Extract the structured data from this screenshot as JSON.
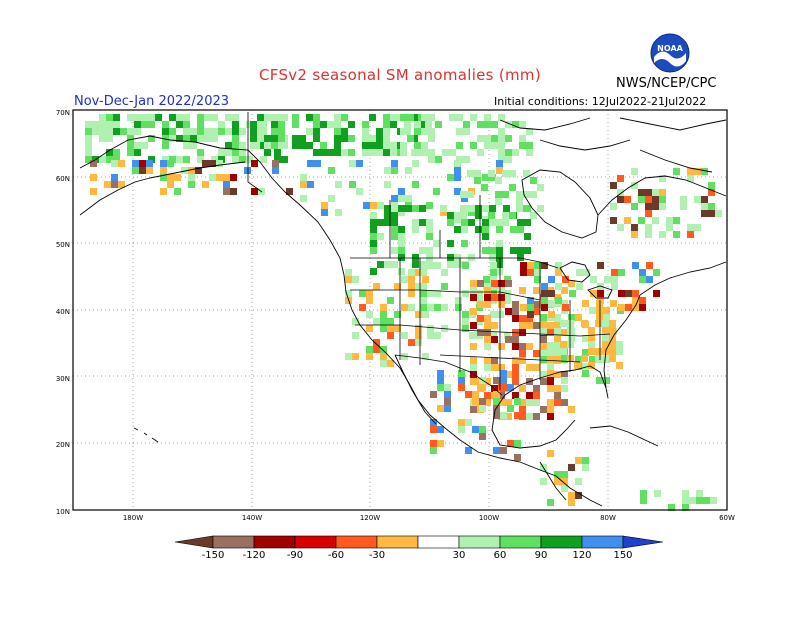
{
  "header": {
    "title": "CFSv2 seasonal SM anomalies (mm)",
    "season": "Nov-Dec-Jan 2022/2023",
    "initial_conditions": "Initial conditions: 12Jul2022-21Jul2022",
    "agency": "NWS/NCEP/CPC",
    "logo_text": "NOAA"
  },
  "map": {
    "lat_labels": [
      "70N",
      "60N",
      "50N",
      "40N",
      "30N",
      "20N",
      "10N"
    ],
    "lon_labels": [
      "180W",
      "140W",
      "120W",
      "100W",
      "80W",
      "60W"
    ]
  },
  "legend": {
    "labels": [
      "-150",
      "-120",
      "-90",
      "-60",
      "-30",
      "30",
      "60",
      "90",
      "120",
      "150"
    ],
    "colors": [
      "#6b3a2a",
      "#9a7060",
      "#a00000",
      "#d80000",
      "#ff5a20",
      "#ffb840",
      "#ffffff",
      "#b0f0b0",
      "#60e060",
      "#10a020",
      "#4090f0",
      "#2040d0"
    ]
  }
}
